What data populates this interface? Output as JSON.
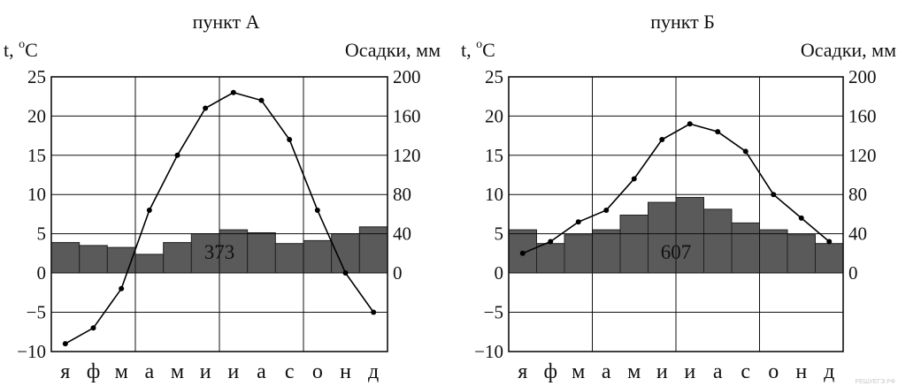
{
  "chart_data": [
    {
      "type": "bar+line",
      "title": "пункт А",
      "ylabel_left": "t, °C",
      "ylabel_left_base": "t, ",
      "ylabel_left_sup": "o",
      "ylabel_left_unit": "C",
      "ylabel_right": "Осадки, мм",
      "categories": [
        "я",
        "ф",
        "м",
        "а",
        "м",
        "и",
        "и",
        "а",
        "с",
        "о",
        "н",
        "д"
      ],
      "ylim_left": [
        -10,
        25
      ],
      "yticks_left": [
        "25",
        "20",
        "15",
        "10",
        "5",
        "0",
        "−5",
        "−10"
      ],
      "ylim_right": [
        0,
        200
      ],
      "yticks_right": [
        "200",
        "160",
        "120",
        "80",
        "40",
        "0"
      ],
      "series": [
        {
          "type": "line",
          "axis": "left",
          "values": [
            -9,
            -7,
            -2,
            8,
            15,
            21,
            23,
            22,
            17,
            8,
            0,
            -5
          ]
        },
        {
          "type": "bar",
          "axis": "right",
          "values": [
            31,
            28,
            26,
            19,
            31,
            40,
            44,
            41,
            30,
            33,
            40,
            47
          ]
        }
      ],
      "annotation": "373",
      "grid": true
    },
    {
      "type": "bar+line",
      "title": "пункт Б",
      "ylabel_left": "t, °C",
      "ylabel_left_base": "t, ",
      "ylabel_left_sup": "o",
      "ylabel_left_unit": "C",
      "ylabel_right": "Осадки, мм",
      "categories": [
        "я",
        "ф",
        "м",
        "а",
        "м",
        "и",
        "и",
        "а",
        "с",
        "о",
        "н",
        "д"
      ],
      "ylim_left": [
        -10,
        25
      ],
      "yticks_left": [
        "25",
        "20",
        "15",
        "10",
        "5",
        "0",
        "−5",
        "−10"
      ],
      "ylim_right": [
        0,
        200
      ],
      "yticks_right": [
        "200",
        "160",
        "120",
        "80",
        "40",
        "0"
      ],
      "series": [
        {
          "type": "line",
          "axis": "left",
          "values": [
            2.5,
            4,
            6.5,
            8,
            12,
            17,
            19,
            18,
            15.5,
            10,
            7,
            4
          ]
        },
        {
          "type": "bar",
          "axis": "right",
          "values": [
            44,
            30,
            39,
            44,
            59,
            72,
            77,
            65,
            51,
            44,
            39,
            30
          ]
        }
      ],
      "annotation": "607",
      "grid": true
    }
  ],
  "watermark": "РЕШУЕГЭ.РФ",
  "colors": {
    "bar": "#5a5a5a",
    "line": "#000000",
    "grid": "#111111"
  }
}
